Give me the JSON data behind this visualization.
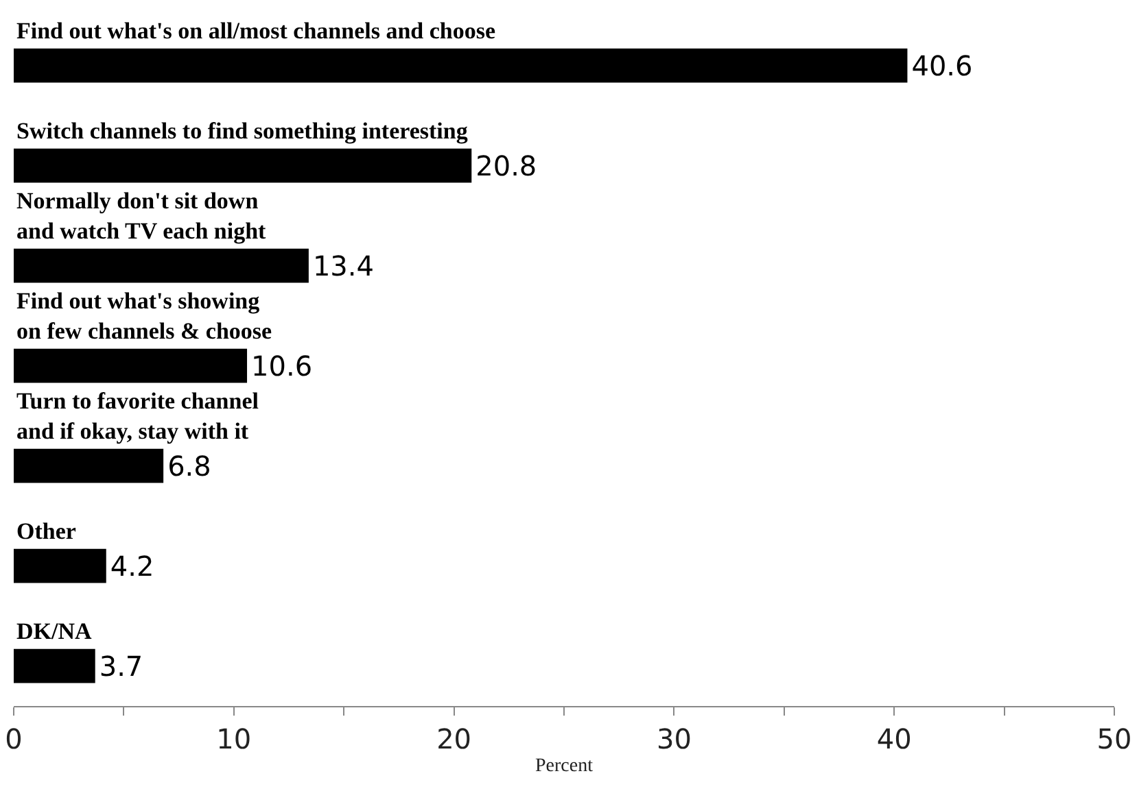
{
  "chart_data": {
    "type": "bar",
    "orientation": "horizontal",
    "categories": [
      "Find out what's on all/most channels and choose",
      "Switch channels to find something interesting",
      "Normally don't sit down\nand watch TV each night",
      "Find out what's showing\non few channels & choose",
      "Turn to favorite channel\nand if okay, stay with it",
      "Other",
      "DK/NA"
    ],
    "values": [
      40.6,
      20.8,
      13.4,
      10.6,
      6.8,
      4.2,
      3.7
    ],
    "color": "#000000",
    "xlim": [
      0,
      50
    ],
    "xticks": [
      0,
      {
        "value": 5,
        "label": null
      },
      10,
      {
        "value": 15,
        "label": null
      },
      20,
      {
        "value": 25,
        "label": null
      },
      30,
      {
        "value": 35,
        "label": null
      },
      40,
      {
        "value": 45,
        "label": null
      },
      50
    ],
    "xlabel": "Percent",
    "data_labels": true,
    "legend": false,
    "tick_labels": "x"
  }
}
